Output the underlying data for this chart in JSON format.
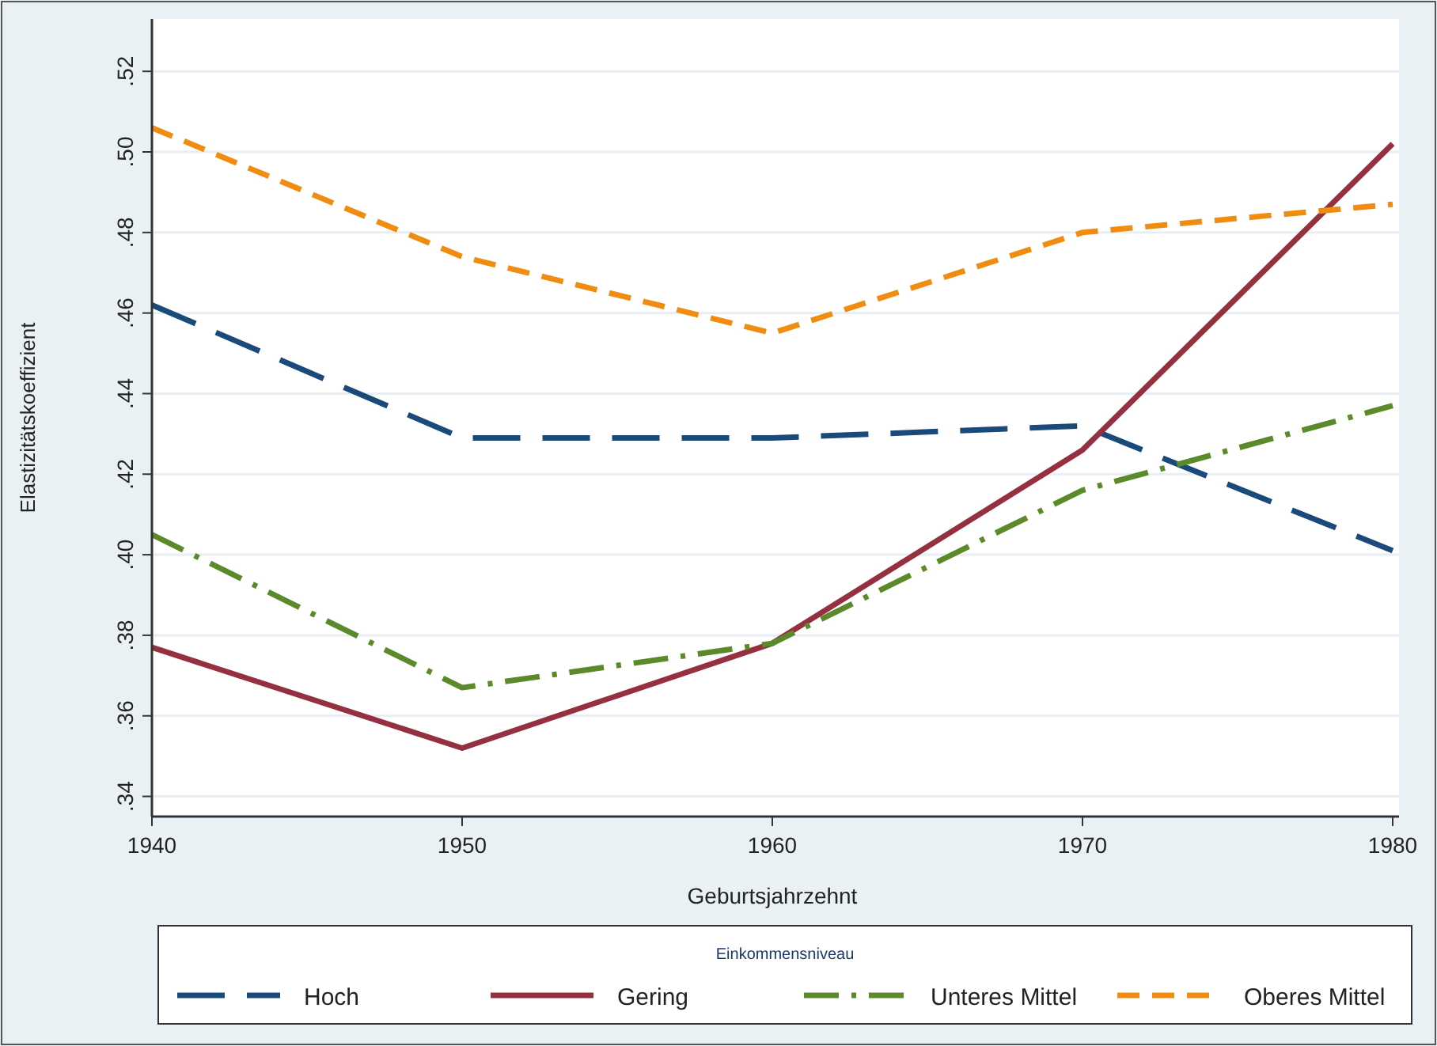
{
  "chart_data": {
    "type": "line",
    "xlabel": "Geburtsjahrzehnt",
    "ylabel": "Elastizitätskoeffizient",
    "legend_title": "Einkommensniveau",
    "legend": "bottom",
    "grid": "y",
    "x": [
      1940,
      1950,
      1960,
      1970,
      1980
    ],
    "xlim": [
      1940,
      1980
    ],
    "xticks": [
      1940,
      1950,
      1960,
      1970,
      1980
    ],
    "ylim": [
      0.335,
      0.533
    ],
    "yticks": [
      {
        "value": 0.34,
        "label": ".34"
      },
      {
        "value": 0.36,
        "label": ".36"
      },
      {
        "value": 0.38,
        "label": ".38"
      },
      {
        "value": 0.4,
        "label": ".40"
      },
      {
        "value": 0.42,
        "label": ".42"
      },
      {
        "value": 0.44,
        "label": ".44"
      },
      {
        "value": 0.46,
        "label": ".46"
      },
      {
        "value": 0.48,
        "label": ".48"
      },
      {
        "value": 0.5,
        "label": ".50"
      },
      {
        "value": 0.52,
        "label": ".52"
      }
    ],
    "series": [
      {
        "name": "Hoch",
        "color": "#1a4a7a",
        "line_style": "longdash",
        "values": [
          0.462,
          0.429,
          0.429,
          0.432,
          0.401
        ]
      },
      {
        "name": "Gering",
        "color": "#953040",
        "line_style": "solid",
        "values": [
          0.377,
          0.352,
          0.378,
          0.426,
          0.502
        ]
      },
      {
        "name": "Unteres Mittel",
        "color": "#5a8a2a",
        "line_style": "dashdot",
        "values": [
          0.405,
          0.367,
          0.378,
          0.416,
          0.437
        ]
      },
      {
        "name": "Oberes Mittel",
        "color": "#f08c10",
        "line_style": "dashed",
        "values": [
          0.506,
          0.474,
          0.455,
          0.48,
          0.487
        ]
      }
    ]
  }
}
